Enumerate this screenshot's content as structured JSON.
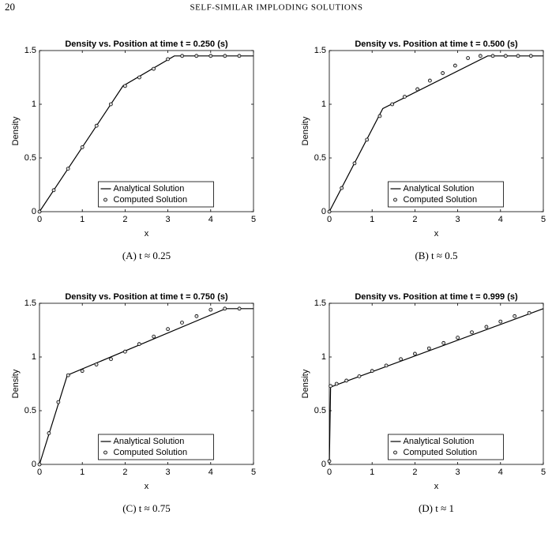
{
  "header": {
    "page": "20",
    "title": "SELF-SIMILAR IMPLODING SOLUTIONS"
  },
  "chart_data": [
    {
      "type": "line",
      "title": "Density vs. Position at time t = 0.250 (s)",
      "xlabel": "x",
      "ylabel": "Density",
      "caption": "(A) t ≈ 0.25",
      "xlim": [
        0,
        5
      ],
      "ylim": [
        0,
        1.5
      ],
      "xticks": [
        0,
        1,
        2,
        3,
        4,
        5
      ],
      "yticks": [
        0,
        0.5,
        1,
        1.5
      ],
      "legend": "south",
      "grid": false,
      "series": [
        {
          "name": "Analytical Solution",
          "color": "#000000",
          "style": "line",
          "x": [
            0,
            1.95,
            3.15,
            5
          ],
          "values": [
            0,
            1.17,
            1.45,
            1.45
          ]
        },
        {
          "name": "Computed Solution",
          "color": "#000000",
          "style": "marker",
          "x": [
            0,
            0.333,
            0.667,
            1.0,
            1.333,
            1.667,
            2.0,
            2.333,
            2.667,
            3.0,
            3.333,
            3.667,
            4.0,
            4.333,
            4.667
          ],
          "values": [
            0,
            0.2,
            0.4,
            0.6,
            0.8,
            1.0,
            1.17,
            1.25,
            1.33,
            1.42,
            1.45,
            1.45,
            1.45,
            1.45,
            1.45
          ]
        }
      ]
    },
    {
      "type": "line",
      "title": "Density vs. Position at time t = 0.500 (s)",
      "xlabel": "x",
      "ylabel": "Density",
      "caption": "(B) t ≈ 0.5",
      "xlim": [
        0,
        5
      ],
      "ylim": [
        0,
        1.5
      ],
      "xticks": [
        0,
        1,
        2,
        3,
        4,
        5
      ],
      "yticks": [
        0,
        0.5,
        1,
        1.5
      ],
      "legend": "south",
      "grid": false,
      "series": [
        {
          "name": "Analytical Solution",
          "color": "#000000",
          "style": "line",
          "x": [
            0,
            1.25,
            3.7,
            5
          ],
          "values": [
            0,
            0.96,
            1.45,
            1.45
          ]
        },
        {
          "name": "Computed Solution",
          "color": "#000000",
          "style": "marker",
          "x": [
            0,
            0.29,
            0.59,
            0.88,
            1.18,
            1.47,
            1.76,
            2.06,
            2.35,
            2.65,
            2.94,
            3.24,
            3.53,
            3.82,
            4.12,
            4.41,
            4.71
          ],
          "values": [
            0,
            0.22,
            0.45,
            0.67,
            0.89,
            1.0,
            1.07,
            1.14,
            1.22,
            1.29,
            1.36,
            1.43,
            1.45,
            1.45,
            1.45,
            1.45,
            1.45
          ]
        }
      ]
    },
    {
      "type": "line",
      "title": "Density vs. Position at time t = 0.750 (s)",
      "xlabel": "x",
      "ylabel": "Density",
      "caption": "(C) t ≈ 0.75",
      "xlim": [
        0,
        5
      ],
      "ylim": [
        0,
        1.5
      ],
      "xticks": [
        0,
        1,
        2,
        3,
        4,
        5
      ],
      "yticks": [
        0,
        0.5,
        1,
        1.5
      ],
      "legend": "south",
      "grid": false,
      "series": [
        {
          "name": "Analytical Solution",
          "color": "#000000",
          "style": "line",
          "x": [
            0,
            0.65,
            4.35,
            5
          ],
          "values": [
            0,
            0.83,
            1.45,
            1.45
          ]
        },
        {
          "name": "Computed Solution",
          "color": "#000000",
          "style": "marker",
          "x": [
            0,
            0.22,
            0.44,
            0.67,
            1.0,
            1.33,
            1.67,
            2.0,
            2.33,
            2.67,
            3.0,
            3.33,
            3.67,
            4.0,
            4.33,
            4.67
          ],
          "values": [
            0,
            0.29,
            0.58,
            0.83,
            0.87,
            0.93,
            0.98,
            1.05,
            1.12,
            1.19,
            1.26,
            1.32,
            1.38,
            1.44,
            1.45,
            1.45
          ]
        }
      ]
    },
    {
      "type": "line",
      "title": "Density vs. Position at time t = 0.999 (s)",
      "xlabel": "x",
      "ylabel": "Density",
      "caption": "(D) t ≈ 1",
      "xlim": [
        0,
        5
      ],
      "ylim": [
        0,
        1.5
      ],
      "xticks": [
        0,
        1,
        2,
        3,
        4,
        5
      ],
      "yticks": [
        0,
        0.5,
        1,
        1.5
      ],
      "legend": "south",
      "grid": false,
      "series": [
        {
          "name": "Analytical Solution",
          "color": "#000000",
          "style": "line",
          "x": [
            0,
            0.03,
            5
          ],
          "values": [
            0,
            0.72,
            1.45
          ]
        },
        {
          "name": "Computed Solution",
          "color": "#000000",
          "style": "marker",
          "x": [
            0,
            0.03,
            0.17,
            0.4,
            0.7,
            1.0,
            1.33,
            1.67,
            2.0,
            2.33,
            2.67,
            3.0,
            3.33,
            3.67,
            4.0,
            4.33,
            4.67
          ],
          "values": [
            0.03,
            0.73,
            0.75,
            0.78,
            0.82,
            0.87,
            0.92,
            0.98,
            1.03,
            1.08,
            1.13,
            1.18,
            1.23,
            1.28,
            1.33,
            1.38,
            1.41
          ]
        }
      ]
    }
  ]
}
